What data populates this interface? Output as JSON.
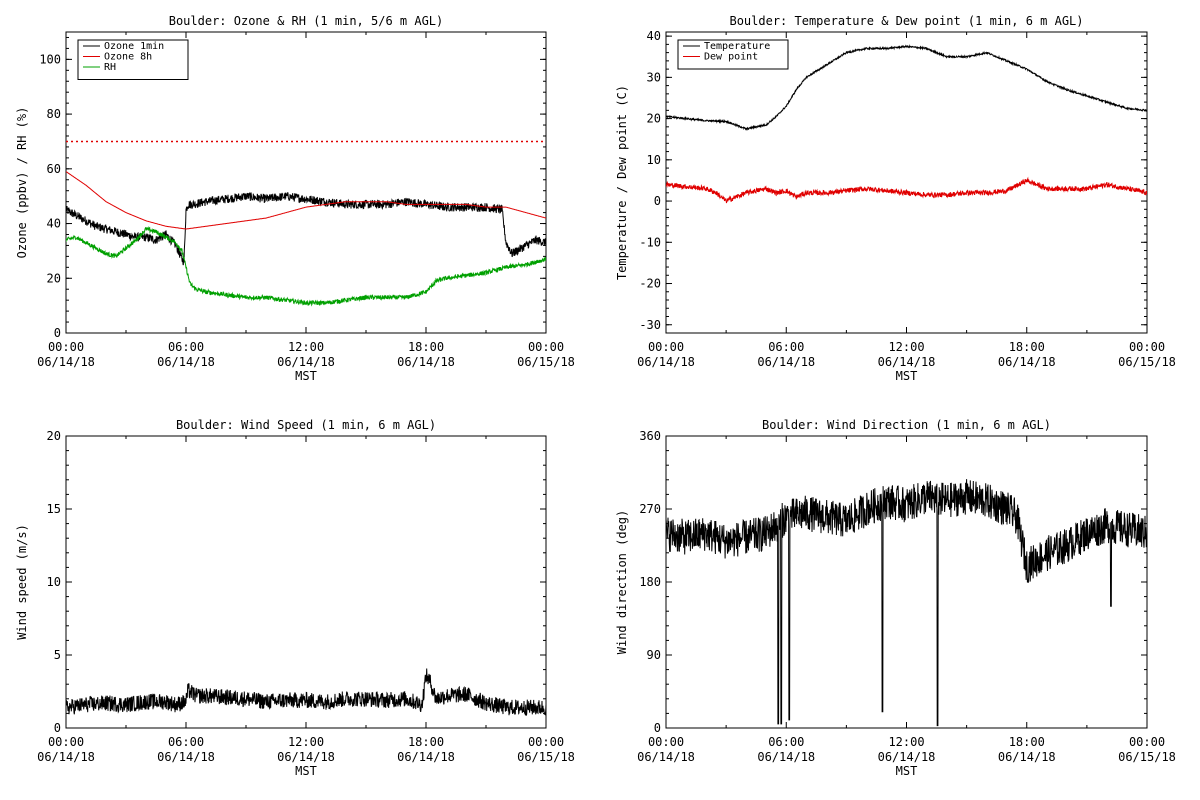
{
  "time_axis": {
    "tick_times": [
      "00:00",
      "06:00",
      "12:00",
      "18:00",
      "00:00"
    ],
    "tick_dates": [
      "06/14/18",
      "06/14/18",
      "06/14/18",
      "06/14/18",
      "06/15/18"
    ],
    "xlabel": "MST",
    "xlim_hours": [
      0,
      24
    ]
  },
  "chart_data": [
    {
      "type": "line",
      "title": "Boulder: Ozone & RH (1 min, 5/6 m AGL)",
      "ylabel": "Ozone (ppbv) / RH (%)",
      "ylim": [
        0,
        110
      ],
      "yticks": [
        0,
        20,
        40,
        60,
        80,
        100
      ],
      "legend": "top-left",
      "reference_lines": [
        {
          "y": 70,
          "color": "#e00000",
          "style": "dotted"
        }
      ],
      "series": [
        {
          "name": "Ozone 1min",
          "color": "#000000",
          "noise": 1.6,
          "x": [
            0,
            0.5,
            1,
            1.5,
            2,
            2.5,
            3,
            3.5,
            4,
            4.5,
            5,
            5.5,
            5.8,
            5.9,
            6.0,
            6.1,
            6.3,
            7,
            8,
            9,
            10,
            11,
            12,
            13,
            14,
            15,
            16,
            17,
            18,
            19,
            20,
            21,
            21.8,
            22.0,
            22.3,
            23,
            23.5,
            24
          ],
          "y": [
            45,
            43,
            41,
            39,
            38,
            37,
            36,
            35,
            35,
            34,
            36,
            32,
            27,
            26,
            45,
            47,
            47,
            48,
            49,
            50,
            49,
            50,
            49,
            48,
            47,
            47,
            47,
            48,
            47,
            46,
            46,
            46,
            45,
            33,
            29,
            32,
            34,
            33
          ]
        },
        {
          "name": "Ozone 8h",
          "color": "#e00000",
          "noise": 0,
          "x": [
            0,
            1,
            2,
            3,
            4,
            5,
            6,
            7,
            8,
            9,
            10,
            11,
            12,
            13,
            14,
            15,
            16,
            17,
            18,
            19,
            20,
            21,
            22,
            23,
            24
          ],
          "y": [
            59,
            54,
            48,
            44,
            41,
            39,
            38,
            39,
            40,
            41,
            42,
            44,
            46,
            47,
            48,
            48,
            48,
            47,
            47,
            47,
            47,
            46,
            46,
            44,
            42
          ]
        },
        {
          "name": "RH",
          "color": "#00a000",
          "noise": 0.8,
          "x": [
            0,
            0.5,
            1,
            1.5,
            2,
            2.5,
            3,
            3.5,
            4,
            4.5,
            5,
            5.5,
            5.8,
            6.0,
            6.1,
            6.2,
            6.5,
            7,
            8,
            9,
            10,
            11,
            12,
            13,
            14,
            15,
            16,
            17,
            18,
            18.5,
            19,
            20,
            21,
            22,
            23,
            24
          ],
          "y": [
            34,
            35,
            33,
            31,
            29,
            28,
            31,
            34,
            38,
            37,
            35,
            33,
            30,
            24,
            21,
            18,
            16,
            15,
            14,
            13,
            13,
            12,
            11,
            11,
            12,
            13,
            13,
            13,
            15,
            19,
            20,
            21,
            22,
            24,
            25,
            27
          ]
        }
      ]
    },
    {
      "type": "line",
      "title": "Boulder: Temperature & Dew point (1 min, 6 m AGL)",
      "ylabel": "Temperature / Dew point (C)",
      "ylim": [
        -32,
        41
      ],
      "yticks": [
        -30,
        -20,
        -10,
        0,
        10,
        20,
        30,
        40
      ],
      "legend": "top-left",
      "series": [
        {
          "name": "Temperature",
          "color": "#000000",
          "noise": 0.2,
          "x": [
            0,
            1,
            2,
            3,
            4,
            5,
            5.5,
            6,
            6.5,
            7,
            8,
            9,
            10,
            11,
            12,
            13,
            14,
            15,
            16,
            17,
            18,
            19,
            20,
            21,
            22,
            23,
            24
          ],
          "y": [
            20.5,
            20,
            19.5,
            19.3,
            17.5,
            18.5,
            20.5,
            23,
            27,
            30,
            33,
            36,
            37,
            37,
            37.5,
            37,
            35,
            35,
            36,
            34,
            32,
            29,
            27,
            25.5,
            24,
            22.5,
            22
          ]
        },
        {
          "name": "Dew point",
          "color": "#e00000",
          "noise": 0.6,
          "x": [
            0,
            1,
            2,
            2.5,
            3,
            4,
            5,
            5.5,
            6,
            6.5,
            7,
            8,
            9,
            10,
            11,
            12,
            13,
            14,
            15,
            16,
            17,
            18,
            18.5,
            19,
            20,
            21,
            22,
            23,
            24
          ],
          "y": [
            4,
            3.5,
            3,
            2,
            0,
            2,
            3,
            2,
            2.5,
            1,
            2,
            2,
            2.5,
            3,
            2.5,
            2,
            1.5,
            1.5,
            2,
            2,
            2.5,
            5,
            4,
            3,
            3,
            3,
            4,
            3,
            2
          ]
        }
      ]
    },
    {
      "type": "line",
      "title": "Boulder: Wind Speed (1 min, 6 m AGL)",
      "ylabel": "Wind speed (m/s)",
      "ylim": [
        0,
        20
      ],
      "yticks": [
        0,
        5,
        10,
        15,
        20
      ],
      "series": [
        {
          "color": "#000000",
          "noise": 0.55,
          "x": [
            0,
            1,
            2,
            3,
            4,
            5,
            5.5,
            6,
            6.1,
            6.5,
            7,
            8,
            9,
            10,
            11,
            12,
            13,
            14,
            15,
            16,
            17,
            17.8,
            18.0,
            18.2,
            18.5,
            19,
            20,
            21,
            22,
            23,
            24
          ],
          "y": [
            1.4,
            1.6,
            1.7,
            1.6,
            1.8,
            1.8,
            1.6,
            1.8,
            2.6,
            2.2,
            2.2,
            2.1,
            2.0,
            1.8,
            1.9,
            1.9,
            1.8,
            2.0,
            2.0,
            1.9,
            2.0,
            1.6,
            3.6,
            3.2,
            2.0,
            2.2,
            2.3,
            1.7,
            1.4,
            1.4,
            1.4
          ]
        }
      ]
    },
    {
      "type": "line",
      "title": "Boulder: Wind Direction (1 min, 6 m AGL)",
      "ylabel": "Wind direction (deg)",
      "ylim": [
        0,
        360
      ],
      "yticks": [
        0,
        90,
        180,
        270,
        360
      ],
      "series": [
        {
          "color": "#000000",
          "noise": 22,
          "x": [
            0,
            1,
            2,
            3,
            4,
            5,
            6,
            7,
            8,
            9,
            10,
            11,
            12,
            13,
            14,
            15,
            16,
            17,
            17.5,
            18,
            19,
            20,
            21,
            22,
            23,
            24
          ],
          "y": [
            240,
            235,
            240,
            230,
            235,
            240,
            260,
            265,
            260,
            255,
            270,
            280,
            275,
            285,
            280,
            285,
            280,
            270,
            260,
            200,
            215,
            225,
            240,
            250,
            245,
            240
          ],
          "spikes": [
            {
              "x": 5.6,
              "y": 5
            },
            {
              "x": 5.75,
              "y": 5
            },
            {
              "x": 6.15,
              "y": 10
            },
            {
              "x": 10.8,
              "y": 20
            },
            {
              "x": 13.55,
              "y": 3
            },
            {
              "x": 22.2,
              "y": 150
            }
          ]
        }
      ]
    }
  ]
}
